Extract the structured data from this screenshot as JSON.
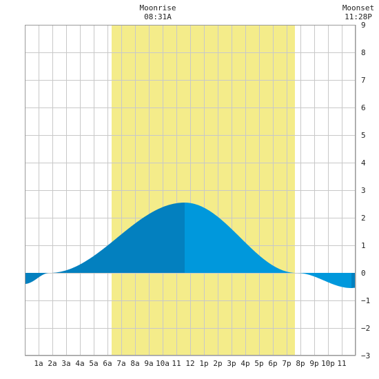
{
  "header": {
    "moonrise_label": "Moonrise",
    "moonrise_time": "08:31A",
    "moonset_label": "Moonset",
    "moonset_time": "11:28P"
  },
  "chart_data": {
    "type": "area",
    "title": "",
    "xlabel": "",
    "ylabel": "",
    "x_range": [
      0,
      24
    ],
    "ylim": [
      -3,
      9
    ],
    "y_ticks": [
      -3,
      -2,
      -1,
      0,
      1,
      2,
      3,
      4,
      5,
      6,
      7,
      8,
      9
    ],
    "x_tick_labels": [
      {
        "x": 1,
        "label": "1a"
      },
      {
        "x": 2,
        "label": "2a"
      },
      {
        "x": 3,
        "label": "3a"
      },
      {
        "x": 4,
        "label": "4a"
      },
      {
        "x": 5,
        "label": "5a"
      },
      {
        "x": 6,
        "label": "6a"
      },
      {
        "x": 7,
        "label": "7a"
      },
      {
        "x": 8,
        "label": "8a"
      },
      {
        "x": 9,
        "label": "9a"
      },
      {
        "x": 10,
        "label": "10a"
      },
      {
        "x": 11,
        "label": "11"
      },
      {
        "x": 12,
        "label": "12"
      },
      {
        "x": 13,
        "label": "1p"
      },
      {
        "x": 14,
        "label": "2p"
      },
      {
        "x": 15,
        "label": "3p"
      },
      {
        "x": 16,
        "label": "4p"
      },
      {
        "x": 17,
        "label": "5p"
      },
      {
        "x": 18,
        "label": "6p"
      },
      {
        "x": 19,
        "label": "7p"
      },
      {
        "x": 20,
        "label": "8p"
      },
      {
        "x": 21,
        "label": "9p"
      },
      {
        "x": 22,
        "label": "10p"
      },
      {
        "x": 23,
        "label": "11"
      }
    ],
    "daylight_range": [
      6.3,
      19.6
    ],
    "grid": true,
    "tide_points": [
      {
        "x": 0,
        "y": -0.4
      },
      {
        "x": 1.8,
        "y": 0.0
      },
      {
        "x": 11.6,
        "y": 2.55,
        "note": "high"
      },
      {
        "x": 19.7,
        "y": 0.0
      },
      {
        "x": 23.7,
        "y": -0.55,
        "note": "low"
      },
      {
        "x": 24,
        "y": -0.54
      }
    ],
    "colors": {
      "daylight": "#f4ec8a",
      "tide_rising_dark": "#0380bf",
      "tide_falling": "#0098dc",
      "grid": "#c8c8c8",
      "background": "#ffffff"
    }
  }
}
